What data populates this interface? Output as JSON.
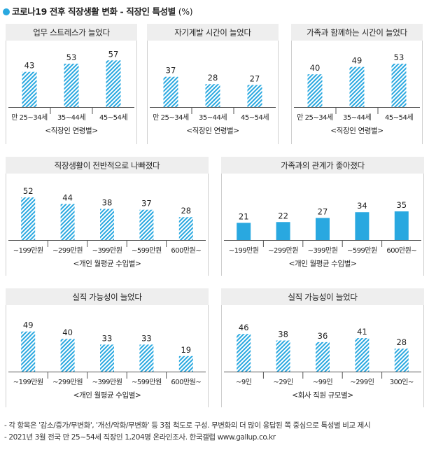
{
  "title": {
    "main": "코로나19 전후 직장생활 변화 - 직장인 특성별",
    "unit": "(%)"
  },
  "colors": {
    "bar": "#29a8e0",
    "hatch": "#29a8e0",
    "header_bg": "#eeeeee",
    "axis": "#555555"
  },
  "chart_data": [
    {
      "type": "bar",
      "title": "업무 스트레스가 늘었다",
      "categories": [
        "만 25~34세",
        "35~44세",
        "45~54세"
      ],
      "values": [
        43,
        53,
        57
      ],
      "xlabel": "<직장인 연령별>",
      "style": "hatched"
    },
    {
      "type": "bar",
      "title": "자기계발 시간이 늘었다",
      "categories": [
        "만 25~34세",
        "35~44세",
        "45~54세"
      ],
      "values": [
        37,
        28,
        27
      ],
      "xlabel": "<직장인 연령별>",
      "style": "hatched"
    },
    {
      "type": "bar",
      "title": "가족과 함께하는 시간이 늘었다",
      "categories": [
        "만 25~34세",
        "35~44세",
        "45~54세"
      ],
      "values": [
        40,
        49,
        53
      ],
      "xlabel": "<직장인 연령별>",
      "style": "hatched"
    },
    {
      "type": "bar",
      "title": "직장생활이 전반적으로 나빠졌다",
      "categories": [
        "~199만원",
        "~299만원",
        "~399만원",
        "~599만원",
        "600만원~"
      ],
      "values": [
        52,
        44,
        38,
        37,
        28
      ],
      "xlabel": "<개인 월평균 수입별>",
      "style": "hatched"
    },
    {
      "type": "bar",
      "title": "가족과의 관계가 좋아졌다",
      "categories": [
        "~199만원",
        "~299만원",
        "~399만원",
        "~599만원",
        "600만원~"
      ],
      "values": [
        21,
        22,
        27,
        34,
        35
      ],
      "xlabel": "<개인 월평균 수입별>",
      "style": "solid"
    },
    {
      "type": "bar",
      "title": "실직 가능성이 늘었다",
      "categories": [
        "~199만원",
        "~299만원",
        "~399만원",
        "~599만원",
        "600만원~"
      ],
      "values": [
        49,
        40,
        33,
        33,
        19
      ],
      "xlabel": "<개인 월평균 수입별>",
      "style": "hatched"
    },
    {
      "type": "bar",
      "title": "실직 가능성이 늘었다",
      "categories": [
        "~9인",
        "~29인",
        "~99인",
        "~299인",
        "300인~"
      ],
      "values": [
        46,
        38,
        36,
        41,
        28
      ],
      "xlabel": "<회사 직원 규모별>",
      "style": "hatched"
    }
  ],
  "footnotes": [
    "- 각 항목은 '감소/증가/무변화', '개선/악화/무변화' 등 3점 척도로 구성. 무변화의 더 많이 응답된 쪽 중심으로 특성별 비교 제시",
    "- 2021년 3월 전국 만 25~54세 직장인 1,204명 온라인조사. 한국갤럽 www.gallup.co.kr"
  ]
}
